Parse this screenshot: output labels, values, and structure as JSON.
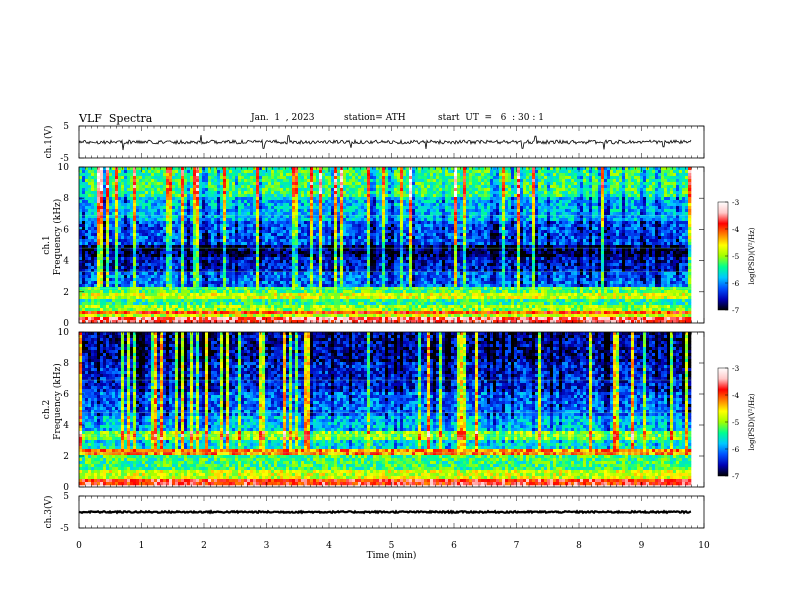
{
  "header": {
    "title": "VLF  Spectra",
    "date": "Jan.  1  , 2023",
    "station": "station= ATH",
    "start": "start  UT  =   6  : 30 : 1"
  },
  "chart_data": [
    {
      "type": "line",
      "name": "ch1-waveform",
      "ylabel": "ch.1(V)",
      "xlim": [
        0,
        10
      ],
      "ylim": [
        -5,
        5
      ],
      "yticks": [
        "5",
        "-5"
      ],
      "data_end_min": 9.8,
      "baseline_v": 0.0,
      "noise_amplitude_v": 0.6,
      "spikes": [
        {
          "t": 0.7,
          "v": -2.5
        },
        {
          "t": 1.95,
          "v": 2.2
        },
        {
          "t": 2.95,
          "v": -2.0
        },
        {
          "t": 3.35,
          "v": 2.0
        },
        {
          "t": 4.35,
          "v": -1.8
        },
        {
          "t": 5.55,
          "v": -2.2
        },
        {
          "t": 7.1,
          "v": -2.0
        },
        {
          "t": 7.3,
          "v": 1.8
        },
        {
          "t": 8.4,
          "v": -2.3
        },
        {
          "t": 9.35,
          "v": -1.5
        }
      ]
    },
    {
      "type": "heatmap",
      "name": "ch1-spectrogram",
      "ylabel": "Frequency  (kHz)",
      "chlabel": "ch.1",
      "xlim": [
        0,
        10
      ],
      "ylim": [
        0,
        10
      ],
      "yticks": [
        "0",
        "2",
        "4",
        "6",
        "8",
        "10"
      ],
      "data_end_min": 9.8,
      "colorbar": {
        "label": "log(PSD)(V²/Hz)",
        "range": [
          -7,
          -3
        ],
        "ticks": [
          "-3",
          "-4",
          "-5",
          "-6",
          "-7"
        ]
      },
      "band_levels": [
        {
          "f": [
            0.0,
            0.3
          ],
          "v": 0.85
        },
        {
          "f": [
            0.3,
            0.5
          ],
          "v": 0.55
        },
        {
          "f": [
            0.5,
            0.8
          ],
          "v": 0.75
        },
        {
          "f": [
            0.8,
            1.2
          ],
          "v": 0.5
        },
        {
          "f": [
            1.2,
            1.5
          ],
          "v": 0.4
        },
        {
          "f": [
            1.5,
            2.0
          ],
          "v": 0.55
        },
        {
          "f": [
            2.0,
            2.3
          ],
          "v": 0.45
        },
        {
          "f": [
            2.3,
            3.2
          ],
          "v": 0.22
        },
        {
          "f": [
            3.2,
            4.2
          ],
          "v": 0.14
        },
        {
          "f": [
            4.2,
            5.0
          ],
          "v": 0.06
        },
        {
          "f": [
            5.0,
            6.5
          ],
          "v": 0.2
        },
        {
          "f": [
            6.5,
            8.0
          ],
          "v": 0.3
        },
        {
          "f": [
            8.0,
            10.0
          ],
          "v": 0.42
        }
      ]
    },
    {
      "type": "heatmap",
      "name": "ch2-spectrogram",
      "ylabel": "Frequency  (kHz)",
      "chlabel": "ch.2",
      "xlim": [
        0,
        10
      ],
      "ylim": [
        0,
        10
      ],
      "yticks": [
        "0",
        "2",
        "4",
        "6",
        "8",
        "10"
      ],
      "data_end_min": 9.8,
      "colorbar": {
        "label": "log(PSD)(V²/Hz)",
        "range": [
          -7,
          -3
        ],
        "ticks": [
          "-3",
          "-4",
          "-5",
          "-6",
          "-7"
        ]
      },
      "band_levels": [
        {
          "f": [
            0.0,
            0.3
          ],
          "v": 0.8
        },
        {
          "f": [
            0.3,
            1.0
          ],
          "v": 0.55
        },
        {
          "f": [
            1.0,
            2.0
          ],
          "v": 0.42
        },
        {
          "f": [
            2.0,
            2.3
          ],
          "v": 0.7
        },
        {
          "f": [
            2.3,
            3.0
          ],
          "v": 0.35
        },
        {
          "f": [
            3.0,
            3.6
          ],
          "v": 0.5
        },
        {
          "f": [
            3.6,
            4.5
          ],
          "v": 0.3
        },
        {
          "f": [
            4.5,
            6.0
          ],
          "v": 0.22
        },
        {
          "f": [
            6.0,
            8.0
          ],
          "v": 0.15
        },
        {
          "f": [
            8.0,
            10.0
          ],
          "v": 0.1
        }
      ]
    },
    {
      "type": "line",
      "name": "ch3-waveform",
      "ylabel": "ch.3(V)",
      "xlabel": "Time  (min)",
      "xlim": [
        0,
        10
      ],
      "ylim": [
        -5,
        5
      ],
      "yticks": [
        "5",
        "-5"
      ],
      "xticks": [
        "0",
        "1",
        "2",
        "3",
        "4",
        "5",
        "6",
        "7",
        "8",
        "9",
        "10"
      ],
      "data_end_min": 9.8,
      "baseline_v": 0.0,
      "noise_amplitude_v": 0.25
    }
  ],
  "colors": {
    "scale": [
      "#000000",
      "#0000b4",
      "#0050ff",
      "#00c8ff",
      "#00ff90",
      "#a0ff00",
      "#ffff00",
      "#ff8000",
      "#ff0000",
      "#ffc8c8",
      "#ffffff"
    ],
    "trace": "#000000"
  }
}
